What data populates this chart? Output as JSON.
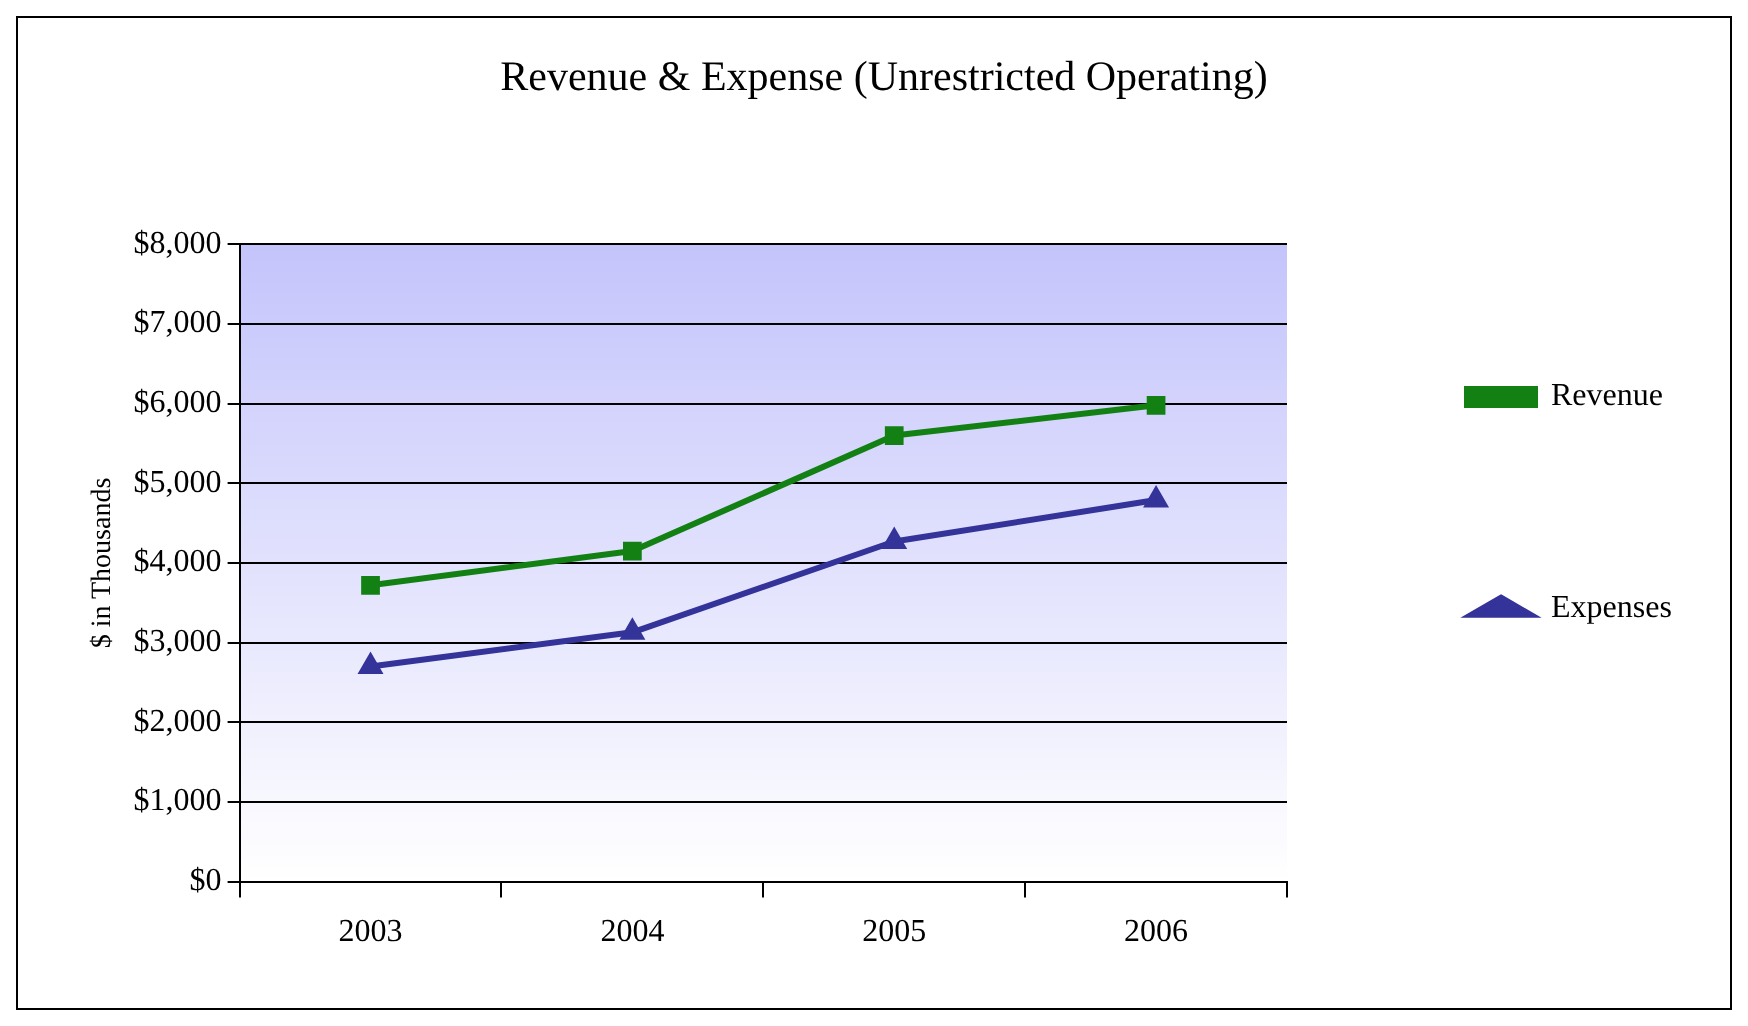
{
  "chart_data": {
    "type": "line",
    "title": "Revenue & Expense (Unrestricted Operating)",
    "ylabel": "$ in Thousands",
    "categories": [
      "2003",
      "2004",
      "2005",
      "2006"
    ],
    "series": [
      {
        "name": "Revenue",
        "color": "#138013",
        "marker": "square",
        "values": [
          3720,
          4150,
          5600,
          5980
        ]
      },
      {
        "name": "Expenses",
        "color": "#33339a",
        "marker": "triangle",
        "values": [
          2700,
          3130,
          4270,
          4790
        ]
      }
    ],
    "ylim": [
      0,
      8000
    ],
    "yticks": [
      {
        "value": 0,
        "label": "$0"
      },
      {
        "value": 1000,
        "label": "$1,000"
      },
      {
        "value": 2000,
        "label": "$2,000"
      },
      {
        "value": 3000,
        "label": "$3,000"
      },
      {
        "value": 4000,
        "label": "$4,000"
      },
      {
        "value": 5000,
        "label": "$5,000"
      },
      {
        "value": 6000,
        "label": "$6,000"
      },
      {
        "value": 7000,
        "label": "$7,000"
      },
      {
        "value": 8000,
        "label": "$8,000"
      }
    ],
    "grid": "y",
    "legend": "right",
    "line_style": "solid"
  }
}
